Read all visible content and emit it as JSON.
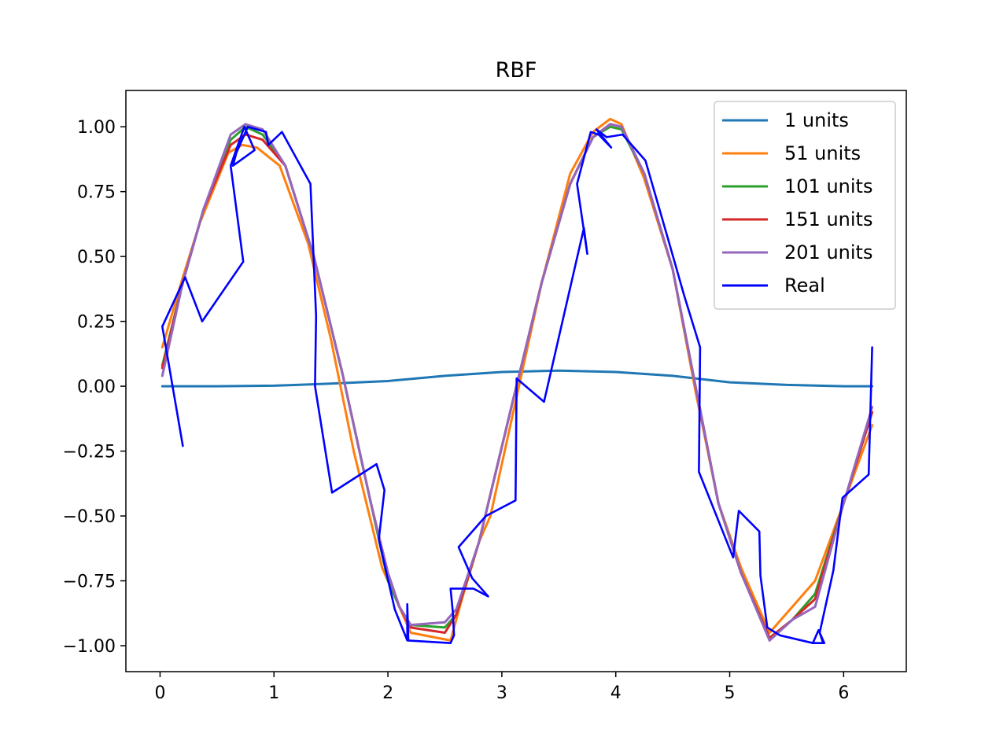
{
  "chart_data": {
    "type": "line",
    "title": "RBF",
    "xlabel": "",
    "ylabel": "",
    "xlim": [
      -0.3,
      6.55
    ],
    "ylim": [
      -1.1,
      1.14
    ],
    "xticks": [
      0,
      1,
      2,
      3,
      4,
      5,
      6
    ],
    "xtick_labels": [
      "0",
      "1",
      "2",
      "3",
      "4",
      "5",
      "6"
    ],
    "yticks": [
      -1.0,
      -0.75,
      -0.5,
      -0.25,
      0.0,
      0.25,
      0.5,
      0.75,
      1.0
    ],
    "ytick_labels": [
      "−1.00",
      "−0.75",
      "−0.50",
      "−0.25",
      "0.00",
      "0.25",
      "0.50",
      "0.75",
      "1.00"
    ],
    "grid": false,
    "legend_position": "upper right",
    "series": [
      {
        "name": "1 units",
        "color": "#1f77b4",
        "points": [
          [
            0.02,
            0.0
          ],
          [
            0.5,
            0.0
          ],
          [
            1.0,
            0.002
          ],
          [
            1.5,
            0.01
          ],
          [
            2.0,
            0.02
          ],
          [
            2.5,
            0.04
          ],
          [
            3.0,
            0.055
          ],
          [
            3.5,
            0.06
          ],
          [
            4.0,
            0.055
          ],
          [
            4.5,
            0.04
          ],
          [
            5.0,
            0.015
          ],
          [
            5.5,
            0.005
          ],
          [
            6.0,
            0.0
          ],
          [
            6.25,
            0.0
          ]
        ]
      },
      {
        "name": "51 units",
        "color": "#ff7f0e",
        "points": [
          [
            0.02,
            0.15
          ],
          [
            0.2,
            0.42
          ],
          [
            0.35,
            0.63
          ],
          [
            0.6,
            0.9
          ],
          [
            0.72,
            0.93
          ],
          [
            0.85,
            0.92
          ],
          [
            1.05,
            0.85
          ],
          [
            1.3,
            0.55
          ],
          [
            1.5,
            0.18
          ],
          [
            1.7,
            -0.25
          ],
          [
            1.95,
            -0.7
          ],
          [
            2.1,
            -0.85
          ],
          [
            2.2,
            -0.95
          ],
          [
            2.55,
            -0.98
          ],
          [
            2.65,
            -0.82
          ],
          [
            2.8,
            -0.6
          ],
          [
            2.9,
            -0.5
          ],
          [
            3.1,
            -0.1
          ],
          [
            3.35,
            0.4
          ],
          [
            3.6,
            0.82
          ],
          [
            3.8,
            0.98
          ],
          [
            3.95,
            1.03
          ],
          [
            4.05,
            1.01
          ],
          [
            4.25,
            0.8
          ],
          [
            4.5,
            0.45
          ],
          [
            4.7,
            -0.02
          ],
          [
            4.9,
            -0.45
          ],
          [
            5.1,
            -0.7
          ],
          [
            5.35,
            -0.95
          ],
          [
            5.55,
            -0.85
          ],
          [
            5.75,
            -0.75
          ],
          [
            6.0,
            -0.45
          ],
          [
            6.25,
            -0.15
          ]
        ]
      },
      {
        "name": "101 units",
        "color": "#2ca02c",
        "points": [
          [
            0.02,
            0.08
          ],
          [
            0.2,
            0.4
          ],
          [
            0.38,
            0.68
          ],
          [
            0.62,
            0.95
          ],
          [
            0.75,
            1.0
          ],
          [
            0.9,
            0.97
          ],
          [
            1.1,
            0.85
          ],
          [
            1.35,
            0.5
          ],
          [
            1.6,
            0.05
          ],
          [
            1.85,
            -0.45
          ],
          [
            2.0,
            -0.75
          ],
          [
            2.1,
            -0.85
          ],
          [
            2.2,
            -0.92
          ],
          [
            2.5,
            -0.93
          ],
          [
            2.6,
            -0.88
          ],
          [
            2.8,
            -0.6
          ],
          [
            3.1,
            -0.05
          ],
          [
            3.35,
            0.4
          ],
          [
            3.6,
            0.78
          ],
          [
            3.8,
            0.96
          ],
          [
            3.95,
            1.0
          ],
          [
            4.05,
            0.99
          ],
          [
            4.25,
            0.82
          ],
          [
            4.5,
            0.45
          ],
          [
            4.7,
            0.0
          ],
          [
            4.9,
            -0.45
          ],
          [
            5.1,
            -0.72
          ],
          [
            5.35,
            -0.97
          ],
          [
            5.55,
            -0.9
          ],
          [
            5.75,
            -0.8
          ],
          [
            6.0,
            -0.45
          ],
          [
            6.25,
            -0.1
          ]
        ]
      },
      {
        "name": "151 units",
        "color": "#d62728",
        "points": [
          [
            0.02,
            0.07
          ],
          [
            0.2,
            0.4
          ],
          [
            0.38,
            0.68
          ],
          [
            0.62,
            0.93
          ],
          [
            0.75,
            0.97
          ],
          [
            0.9,
            0.95
          ],
          [
            1.1,
            0.85
          ],
          [
            1.35,
            0.5
          ],
          [
            1.6,
            0.05
          ],
          [
            1.85,
            -0.45
          ],
          [
            2.0,
            -0.72
          ],
          [
            2.1,
            -0.85
          ],
          [
            2.2,
            -0.93
          ],
          [
            2.5,
            -0.95
          ],
          [
            2.6,
            -0.88
          ],
          [
            2.8,
            -0.6
          ],
          [
            3.1,
            -0.05
          ],
          [
            3.35,
            0.4
          ],
          [
            3.6,
            0.78
          ],
          [
            3.8,
            0.96
          ],
          [
            3.95,
            1.01
          ],
          [
            4.05,
            1.0
          ],
          [
            4.25,
            0.82
          ],
          [
            4.5,
            0.45
          ],
          [
            4.7,
            0.0
          ],
          [
            4.9,
            -0.45
          ],
          [
            5.1,
            -0.72
          ],
          [
            5.35,
            -0.97
          ],
          [
            5.55,
            -0.9
          ],
          [
            5.75,
            -0.82
          ],
          [
            6.0,
            -0.45
          ],
          [
            6.25,
            -0.1
          ]
        ]
      },
      {
        "name": "201 units",
        "color": "#9467bd",
        "points": [
          [
            0.02,
            0.04
          ],
          [
            0.2,
            0.4
          ],
          [
            0.38,
            0.68
          ],
          [
            0.62,
            0.97
          ],
          [
            0.75,
            1.01
          ],
          [
            0.9,
            0.99
          ],
          [
            1.1,
            0.85
          ],
          [
            1.35,
            0.5
          ],
          [
            1.6,
            0.05
          ],
          [
            1.85,
            -0.45
          ],
          [
            2.0,
            -0.72
          ],
          [
            2.1,
            -0.85
          ],
          [
            2.2,
            -0.92
          ],
          [
            2.5,
            -0.91
          ],
          [
            2.6,
            -0.86
          ],
          [
            2.8,
            -0.6
          ],
          [
            3.1,
            -0.05
          ],
          [
            3.35,
            0.4
          ],
          [
            3.6,
            0.78
          ],
          [
            3.8,
            0.96
          ],
          [
            3.95,
            1.01
          ],
          [
            4.05,
            1.0
          ],
          [
            4.25,
            0.82
          ],
          [
            4.5,
            0.45
          ],
          [
            4.7,
            0.0
          ],
          [
            4.9,
            -0.45
          ],
          [
            5.1,
            -0.72
          ],
          [
            5.35,
            -0.98
          ],
          [
            5.55,
            -0.9
          ],
          [
            5.75,
            -0.85
          ],
          [
            6.0,
            -0.45
          ],
          [
            6.25,
            -0.08
          ]
        ]
      },
      {
        "name": "Real",
        "color": "#0000ff",
        "points": [
          [
            0.2,
            -0.23
          ],
          [
            0.02,
            0.23
          ],
          [
            0.22,
            0.42
          ],
          [
            0.37,
            0.25
          ],
          [
            0.73,
            0.48
          ],
          [
            0.62,
            0.85
          ],
          [
            0.74,
            1.0
          ],
          [
            0.83,
            0.91
          ],
          [
            0.64,
            0.85
          ],
          [
            0.67,
            0.9
          ],
          [
            0.77,
            1.0
          ],
          [
            0.93,
            0.98
          ],
          [
            0.95,
            0.93
          ],
          [
            1.07,
            0.98
          ],
          [
            1.32,
            0.78
          ],
          [
            1.37,
            0.27
          ],
          [
            1.36,
            0.0
          ],
          [
            1.51,
            -0.41
          ],
          [
            1.9,
            -0.3
          ],
          [
            1.97,
            -0.4
          ],
          [
            1.92,
            -0.59
          ],
          [
            2.06,
            -0.86
          ],
          [
            2.17,
            -0.98
          ],
          [
            2.17,
            -0.84
          ],
          [
            2.18,
            -0.98
          ],
          [
            2.55,
            -0.99
          ],
          [
            2.58,
            -0.96
          ],
          [
            2.57,
            -0.87
          ],
          [
            2.55,
            -0.78
          ],
          [
            2.75,
            -0.78
          ],
          [
            2.88,
            -0.81
          ],
          [
            2.74,
            -0.74
          ],
          [
            2.62,
            -0.62
          ],
          [
            2.86,
            -0.5
          ],
          [
            3.12,
            -0.44
          ],
          [
            3.13,
            0.03
          ],
          [
            3.37,
            -0.06
          ],
          [
            3.72,
            0.61
          ],
          [
            3.75,
            0.51
          ],
          [
            3.66,
            0.78
          ],
          [
            3.78,
            0.98
          ],
          [
            3.85,
            0.97
          ],
          [
            3.96,
            0.92
          ],
          [
            3.83,
            0.99
          ],
          [
            3.92,
            0.96
          ],
          [
            4.06,
            0.97
          ],
          [
            4.26,
            0.87
          ],
          [
            4.47,
            0.55
          ],
          [
            4.6,
            0.35
          ],
          [
            4.74,
            0.15
          ],
          [
            4.73,
            -0.33
          ],
          [
            5.03,
            -0.66
          ],
          [
            5.08,
            -0.48
          ],
          [
            5.26,
            -0.56
          ],
          [
            5.27,
            -0.73
          ],
          [
            5.33,
            -0.93
          ],
          [
            5.44,
            -0.96
          ],
          [
            5.73,
            -0.99
          ],
          [
            5.78,
            -0.94
          ],
          [
            5.83,
            -0.99
          ],
          [
            5.73,
            -0.99
          ],
          [
            5.82,
            -0.99
          ],
          [
            5.79,
            -0.95
          ],
          [
            5.91,
            -0.71
          ],
          [
            5.99,
            -0.43
          ],
          [
            6.22,
            -0.34
          ],
          [
            6.25,
            0.15
          ]
        ]
      }
    ]
  }
}
